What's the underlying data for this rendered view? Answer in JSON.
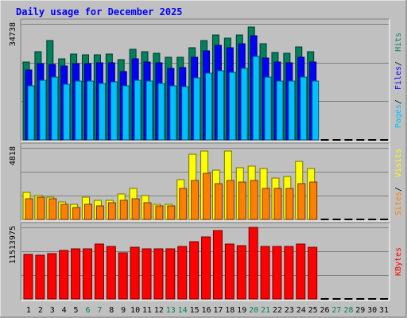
{
  "title": "Daily usage for December 2025",
  "colors": {
    "background": "#c0c0c0",
    "title": "#0000ff",
    "hits": "#00805c",
    "files": "#0000ff",
    "pages": "#00c0ff",
    "visits": "#ffff00",
    "sites": "#ff8000",
    "kbytes": "#ff0000",
    "weekend_label": "#00805c"
  },
  "chart_data": [
    {
      "type": "bar",
      "name": "hits-files-pages",
      "categories": [
        "1",
        "2",
        "3",
        "4",
        "5",
        "6",
        "7",
        "8",
        "9",
        "10",
        "11",
        "12",
        "13",
        "14",
        "15",
        "16",
        "17",
        "18",
        "19",
        "20",
        "21",
        "22",
        "23",
        "24",
        "25",
        "26",
        "27",
        "28",
        "29",
        "30",
        "31"
      ],
      "ymax_label": "34738",
      "ymax": 34738,
      "series": [
        {
          "name": "Hits",
          "values": [
            23400,
            26500,
            29800,
            24200,
            25700,
            25400,
            25500,
            25700,
            24000,
            27200,
            26300,
            26000,
            24700,
            24800,
            27500,
            29800,
            31400,
            30400,
            31500,
            33900,
            28700,
            26200,
            26000,
            27900,
            26400,
            0,
            0,
            0,
            0,
            0,
            0
          ]
        },
        {
          "name": "Files",
          "values": [
            20900,
            22800,
            22500,
            22100,
            22900,
            22900,
            23000,
            23000,
            20400,
            24200,
            23200,
            23100,
            21300,
            21600,
            24800,
            26700,
            28300,
            27700,
            28900,
            31200,
            24600,
            23200,
            23000,
            24800,
            23300,
            0,
            0,
            0,
            0,
            0,
            0
          ]
        },
        {
          "name": "Pages",
          "values": [
            16100,
            17900,
            18800,
            16700,
            17500,
            17500,
            17000,
            17300,
            16100,
            17900,
            17600,
            16800,
            16200,
            16000,
            18600,
            20000,
            20700,
            20200,
            21300,
            25000,
            18800,
            17700,
            17700,
            18800,
            17500,
            0,
            0,
            0,
            0,
            0,
            0
          ]
        }
      ],
      "legend": [
        "Pages",
        "Files",
        "Hits"
      ]
    },
    {
      "type": "bar",
      "name": "visits-sites",
      "categories": [
        "1",
        "2",
        "3",
        "4",
        "5",
        "6",
        "7",
        "8",
        "9",
        "10",
        "11",
        "12",
        "13",
        "14",
        "15",
        "16",
        "17",
        "18",
        "19",
        "20",
        "21",
        "22",
        "23",
        "24",
        "25",
        "26",
        "27",
        "28",
        "29",
        "30",
        "31"
      ],
      "ymax_label": "4818",
      "ymax": 4818,
      "series": [
        {
          "name": "Visits",
          "values": [
            1800,
            1600,
            1500,
            1200,
            1000,
            1500,
            1300,
            1300,
            1700,
            2100,
            1600,
            1000,
            1000,
            2700,
            4400,
            4600,
            3300,
            4600,
            3500,
            3600,
            3400,
            2800,
            2900,
            3900,
            3400,
            0,
            0,
            0,
            0,
            0,
            0
          ]
        },
        {
          "name": "Sites",
          "values": [
            1400,
            1500,
            1400,
            1000,
            800,
            1000,
            900,
            1100,
            1300,
            1400,
            1100,
            900,
            900,
            2100,
            2600,
            3100,
            2400,
            2600,
            2500,
            2600,
            2100,
            2100,
            2100,
            2400,
            2500,
            0,
            0,
            0,
            0,
            0,
            0
          ]
        }
      ],
      "legend": [
        "Sites",
        "Visits"
      ]
    },
    {
      "type": "bar",
      "name": "kbytes",
      "categories": [
        "1",
        "2",
        "3",
        "4",
        "5",
        "6",
        "7",
        "8",
        "9",
        "10",
        "11",
        "12",
        "13",
        "14",
        "15",
        "16",
        "17",
        "18",
        "19",
        "20",
        "21",
        "22",
        "23",
        "24",
        "25",
        "26",
        "27",
        "28",
        "29",
        "30",
        "31"
      ],
      "ymax_label": "11513975",
      "ymax": 11513975,
      "series": [
        {
          "name": "KBytes",
          "values": [
            7200000,
            7000000,
            7300000,
            7800000,
            8000000,
            8000000,
            8800000,
            8400000,
            7400000,
            8300000,
            8000000,
            8000000,
            8000000,
            8400000,
            9200000,
            10000000,
            11000000,
            8800000,
            8600000,
            11513975,
            8400000,
            8500000,
            8500000,
            8800000,
            8300000,
            0,
            0,
            0,
            0,
            0,
            0
          ]
        }
      ],
      "legend": [
        "KBytes"
      ]
    }
  ],
  "x_labels": [
    {
      "text": "1",
      "weekend": false
    },
    {
      "text": "2",
      "weekend": false
    },
    {
      "text": "3",
      "weekend": false
    },
    {
      "text": "4",
      "weekend": false
    },
    {
      "text": "5",
      "weekend": false
    },
    {
      "text": "6",
      "weekend": true
    },
    {
      "text": "7",
      "weekend": true
    },
    {
      "text": "8",
      "weekend": false
    },
    {
      "text": "9",
      "weekend": false
    },
    {
      "text": "10",
      "weekend": false
    },
    {
      "text": "11",
      "weekend": false
    },
    {
      "text": "12",
      "weekend": false
    },
    {
      "text": "13",
      "weekend": true
    },
    {
      "text": "14",
      "weekend": true
    },
    {
      "text": "15",
      "weekend": false
    },
    {
      "text": "16",
      "weekend": false
    },
    {
      "text": "17",
      "weekend": false
    },
    {
      "text": "18",
      "weekend": false
    },
    {
      "text": "19",
      "weekend": false
    },
    {
      "text": "20",
      "weekend": true
    },
    {
      "text": "21",
      "weekend": true
    },
    {
      "text": "22",
      "weekend": false
    },
    {
      "text": "23",
      "weekend": false
    },
    {
      "text": "24",
      "weekend": false
    },
    {
      "text": "25",
      "weekend": false
    },
    {
      "text": "26",
      "weekend": false
    },
    {
      "text": "27",
      "weekend": true
    },
    {
      "text": "28",
      "weekend": true
    },
    {
      "text": "29",
      "weekend": false
    },
    {
      "text": "30",
      "weekend": false
    },
    {
      "text": "31",
      "weekend": false
    }
  ]
}
